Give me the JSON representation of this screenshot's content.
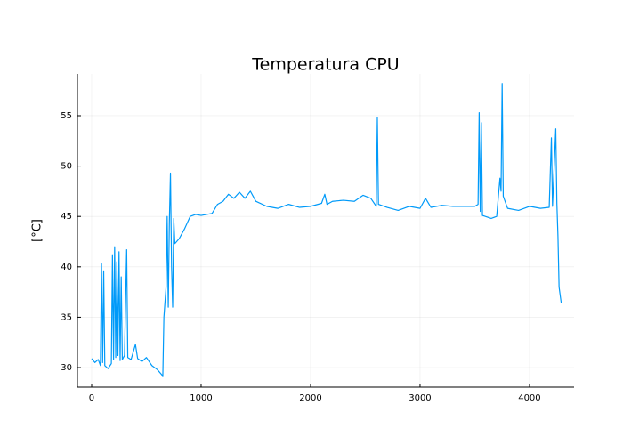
{
  "chart_data": {
    "type": "line",
    "title": "Temperatura CPU",
    "y_label": "[°C]",
    "x": [
      0,
      30,
      60,
      80,
      90,
      100,
      110,
      120,
      150,
      180,
      190,
      200,
      210,
      220,
      230,
      240,
      250,
      260,
      270,
      280,
      300,
      320,
      330,
      360,
      400,
      420,
      460,
      500,
      550,
      600,
      640,
      650,
      660,
      680,
      690,
      700,
      710,
      720,
      730,
      740,
      750,
      760,
      800,
      850,
      900,
      950,
      1000,
      1050,
      1100,
      1150,
      1200,
      1250,
      1300,
      1350,
      1400,
      1450,
      1500,
      1600,
      1700,
      1800,
      1900,
      2000,
      2100,
      2130,
      2150,
      2200,
      2300,
      2400,
      2480,
      2550,
      2600,
      2610,
      2620,
      2700,
      2800,
      2900,
      3000,
      3050,
      3100,
      3200,
      3300,
      3400,
      3500,
      3530,
      3540,
      3550,
      3560,
      3570,
      3650,
      3700,
      3730,
      3740,
      3750,
      3760,
      3800,
      3900,
      4000,
      4100,
      4180,
      4200,
      4210,
      4240,
      4250,
      4260,
      4270,
      4280,
      4290
    ],
    "series": [
      {
        "name": "y1",
        "color": "#009af9",
        "values": [
          30.9,
          30.5,
          30.8,
          30.2,
          40.3,
          30.5,
          39.6,
          30.2,
          29.9,
          30.4,
          41.2,
          30.8,
          42.0,
          31.0,
          40.5,
          31.2,
          41.5,
          30.7,
          39.0,
          30.8,
          31.2,
          41.7,
          31.0,
          30.8,
          32.3,
          30.9,
          30.6,
          31.0,
          30.2,
          29.8,
          29.3,
          29.1,
          35.0,
          38.0,
          45.0,
          36.0,
          44.5,
          49.3,
          40.0,
          36.0,
          44.8,
          42.3,
          42.8,
          43.8,
          45.0,
          45.2,
          45.1,
          45.2,
          45.3,
          46.2,
          46.5,
          47.2,
          46.8,
          47.4,
          46.8,
          47.5,
          46.5,
          46.0,
          45.8,
          46.2,
          45.9,
          46.0,
          46.3,
          47.2,
          46.2,
          46.5,
          46.6,
          46.5,
          47.1,
          46.8,
          46.0,
          54.8,
          46.2,
          45.9,
          45.6,
          46.0,
          45.8,
          46.8,
          45.9,
          46.1,
          46.0,
          46.0,
          46.0,
          46.2,
          55.3,
          45.5,
          54.3,
          45.1,
          44.8,
          45.0,
          48.8,
          47.5,
          58.2,
          47.0,
          45.8,
          45.6,
          46.0,
          45.8,
          45.9,
          52.8,
          46.0,
          53.7,
          46.3,
          43.0,
          38.0,
          37.2,
          36.4
        ]
      }
    ],
    "xlim": [
      -130,
      4407
    ],
    "xticks": [
      0,
      1000,
      2000,
      3000,
      4000
    ],
    "ylim": [
      28.06,
      59.15
    ],
    "yticks": [
      30,
      35,
      40,
      45,
      50,
      55
    ],
    "grid": true
  }
}
